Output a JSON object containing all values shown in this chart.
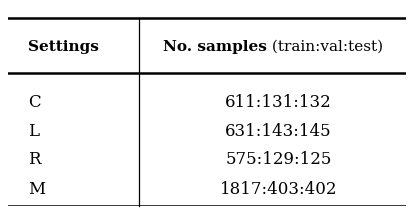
{
  "col1_header": "Settings",
  "col2_header_bold": "No. samples",
  "col2_header_normal": " (train:val:test)",
  "rows": [
    [
      "C",
      "611:131:132"
    ],
    [
      "L",
      "631:143:145"
    ],
    [
      "R",
      "575:129:125"
    ],
    [
      "M",
      "1817:403:402"
    ]
  ],
  "bg_color": "#ffffff",
  "text_color": "#000000",
  "figsize": [
    4.14,
    2.1
  ],
  "dpi": 100
}
